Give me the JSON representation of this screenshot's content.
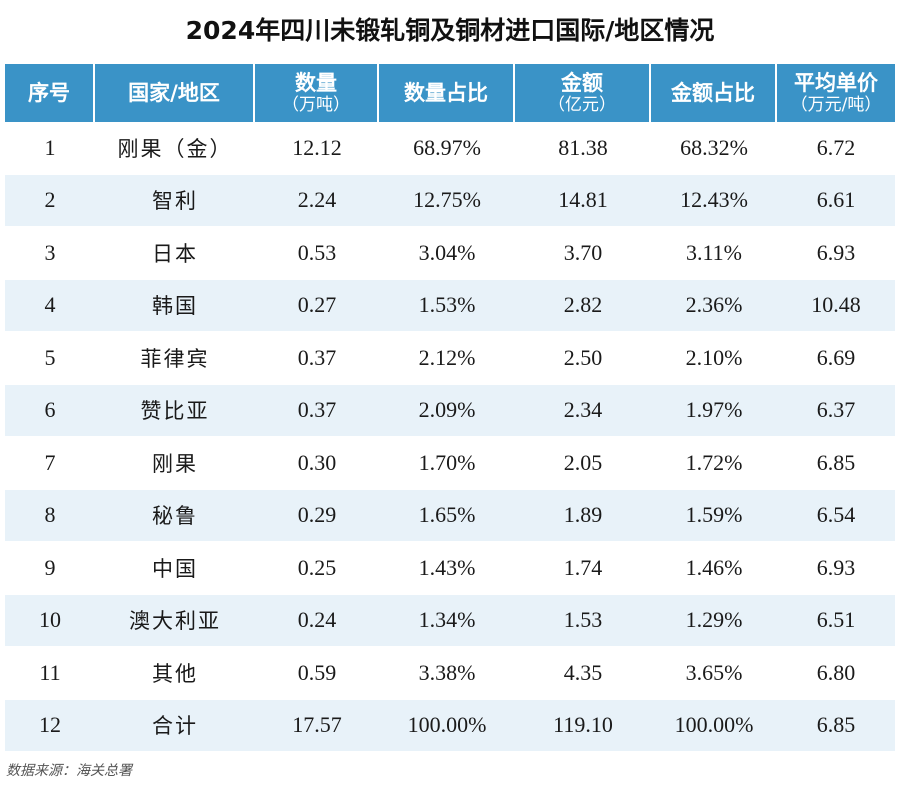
{
  "title": "2024年四川未锻轧铜及铜材进口国际/地区情况",
  "headers": [
    {
      "main": "序号",
      "sub": ""
    },
    {
      "main": "国家/地区",
      "sub": ""
    },
    {
      "main": "数量",
      "sub": "（万吨）"
    },
    {
      "main": "数量占比",
      "sub": ""
    },
    {
      "main": "金额",
      "sub": "（亿元）"
    },
    {
      "main": "金额占比",
      "sub": ""
    },
    {
      "main": "平均单价",
      "sub": "（万元/吨）"
    }
  ],
  "rows": [
    [
      "1",
      "刚果（金）",
      "12.12",
      "68.97%",
      "81.38",
      "68.32%",
      "6.72"
    ],
    [
      "2",
      "智利",
      "2.24",
      "12.75%",
      "14.81",
      "12.43%",
      "6.61"
    ],
    [
      "3",
      "日本",
      "0.53",
      "3.04%",
      "3.70",
      "3.11%",
      "6.93"
    ],
    [
      "4",
      "韩国",
      "0.27",
      "1.53%",
      "2.82",
      "2.36%",
      "10.48"
    ],
    [
      "5",
      "菲律宾",
      "0.37",
      "2.12%",
      "2.50",
      "2.10%",
      "6.69"
    ],
    [
      "6",
      "赞比亚",
      "0.37",
      "2.09%",
      "2.34",
      "1.97%",
      "6.37"
    ],
    [
      "7",
      "刚果",
      "0.30",
      "1.70%",
      "2.05",
      "1.72%",
      "6.85"
    ],
    [
      "8",
      "秘鲁",
      "0.29",
      "1.65%",
      "1.89",
      "1.59%",
      "6.54"
    ],
    [
      "9",
      "中国",
      "0.25",
      "1.43%",
      "1.74",
      "1.46%",
      "6.93"
    ],
    [
      "10",
      "澳大利亚",
      "0.24",
      "1.34%",
      "1.53",
      "1.29%",
      "6.51"
    ],
    [
      "11",
      "其他",
      "0.59",
      "3.38%",
      "4.35",
      "3.65%",
      "6.80"
    ],
    [
      "12",
      "合计",
      "17.57",
      "100.00%",
      "119.10",
      "100.00%",
      "6.85"
    ]
  ],
  "source": "数据来源：海关总署",
  "colors": {
    "header_bg": "#3a93c7",
    "stripe": "#e8f2f9"
  }
}
